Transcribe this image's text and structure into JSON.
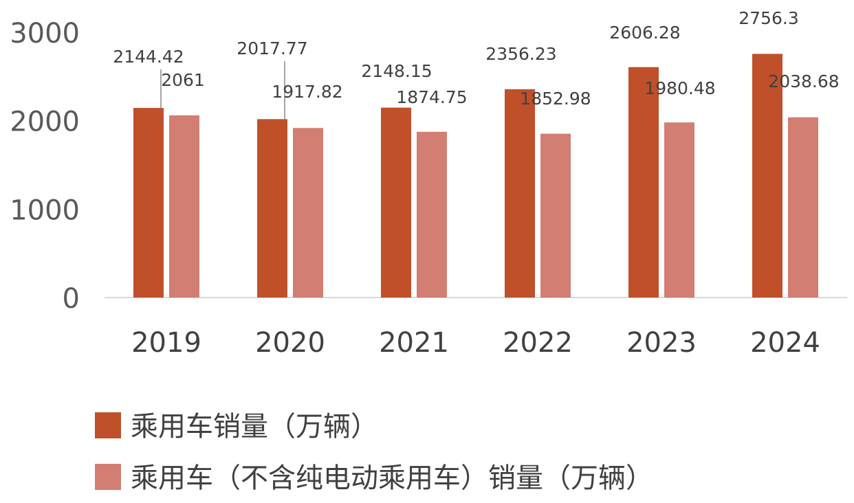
{
  "chart_data": {
    "type": "bar",
    "title": "",
    "xlabel": "",
    "ylabel": "",
    "ylim": [
      0,
      3000
    ],
    "yticks": [
      "0",
      "1000",
      "2000",
      "3000"
    ],
    "grid": false,
    "legend_position": "bottom-left",
    "categories": [
      "2019",
      "2020",
      "2021",
      "2022",
      "2023",
      "2024"
    ],
    "series": [
      {
        "name": "乘用车销量（万辆）",
        "color": "#c0502a",
        "values": [
          2144.42,
          2017.77,
          2148.15,
          2356.23,
          2606.28,
          2756.3
        ],
        "labels": [
          "2144.42",
          "2017.77",
          "2148.15",
          "2356.23",
          "2606.28",
          "2756.3"
        ]
      },
      {
        "name": "乘用车（不含纯电动乘用车）销量（万辆）",
        "color": "#d27e72",
        "values": [
          2061,
          1917.82,
          1874.75,
          1852.98,
          1980.48,
          2038.68
        ],
        "labels": [
          "2061",
          "1917.82",
          "1874.75",
          "1852.98",
          "1980.48",
          "2038.68"
        ]
      }
    ]
  }
}
